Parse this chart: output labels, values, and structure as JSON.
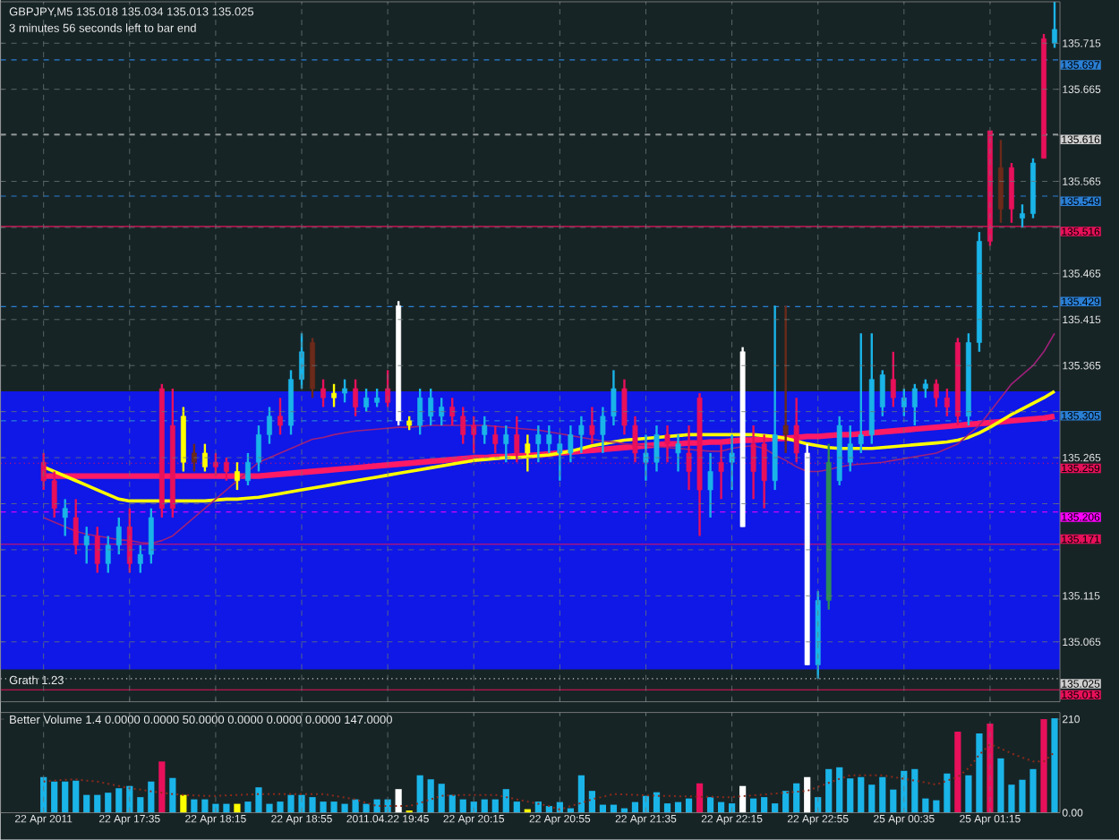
{
  "chart_data": [
    {
      "type": "candlestick",
      "title": "GBPJPY,M5  135.018 135.034 135.013 135.025",
      "subtitle": "3 minutes 56 seconds left to bar end",
      "annotations": [
        "Grath 1.23"
      ],
      "categories": [
        null,
        null,
        null,
        null,
        null,
        null,
        null,
        null,
        null,
        null,
        null,
        null,
        null,
        null,
        null,
        null,
        null,
        null,
        null,
        null,
        null,
        null,
        null,
        null,
        null,
        null,
        null,
        null,
        null,
        null,
        null,
        null,
        null,
        null,
        null,
        null,
        null,
        null,
        null,
        null,
        null,
        null,
        null,
        null,
        null,
        null,
        null,
        null,
        null,
        null,
        null,
        null,
        null,
        null,
        null,
        null,
        null,
        null,
        null,
        null,
        null,
        null,
        null,
        null,
        null,
        null,
        null,
        null,
        null,
        null,
        null,
        null,
        null,
        null,
        null,
        null,
        null,
        null,
        null,
        null,
        null,
        null,
        null,
        null,
        null,
        null,
        null,
        null,
        null,
        null,
        null,
        null,
        null,
        null,
        null
      ],
      "ohlc": [
        [
          135.26,
          135.27,
          135.23,
          135.24
        ],
        [
          135.24,
          135.25,
          135.2,
          135.21
        ],
        [
          135.2,
          135.22,
          135.18,
          135.21
        ],
        [
          135.2,
          135.22,
          135.16,
          135.17
        ],
        [
          135.17,
          135.19,
          135.15,
          135.18
        ],
        [
          135.18,
          135.19,
          135.14,
          135.15
        ],
        [
          135.15,
          135.18,
          135.14,
          135.17
        ],
        [
          135.17,
          135.2,
          135.16,
          135.19
        ],
        [
          135.19,
          135.21,
          135.14,
          135.15
        ],
        [
          135.15,
          135.17,
          135.14,
          135.16
        ],
        [
          135.16,
          135.21,
          135.15,
          135.2
        ],
        [
          135.34,
          135.345,
          135.2,
          135.21
        ],
        [
          135.3,
          135.34,
          135.2,
          135.21
        ],
        [
          135.31,
          135.32,
          135.25,
          135.26
        ],
        [
          135.26,
          135.28,
          135.25,
          135.27
        ],
        [
          135.27,
          135.28,
          135.25,
          135.255
        ],
        [
          135.26,
          135.27,
          135.245,
          135.255
        ],
        [
          135.26,
          135.265,
          135.24,
          135.25
        ],
        [
          135.25,
          135.26,
          135.23,
          135.24
        ],
        [
          135.24,
          135.27,
          135.235,
          135.26
        ],
        [
          135.26,
          135.3,
          135.25,
          135.29
        ],
        [
          135.29,
          135.32,
          135.28,
          135.31
        ],
        [
          135.31,
          135.33,
          135.29,
          135.3
        ],
        [
          135.3,
          135.36,
          135.29,
          135.35
        ],
        [
          135.35,
          135.4,
          135.34,
          135.38
        ],
        [
          135.39,
          135.395,
          135.33,
          135.34
        ],
        [
          135.34,
          135.35,
          135.32,
          135.33
        ],
        [
          135.33,
          135.345,
          135.32,
          135.335
        ],
        [
          135.335,
          135.35,
          135.325,
          135.34
        ],
        [
          135.34,
          135.35,
          135.31,
          135.32
        ],
        [
          135.32,
          135.34,
          135.315,
          135.33
        ],
        [
          135.325,
          135.34,
          135.32,
          135.33
        ],
        [
          135.34,
          135.36,
          135.32,
          135.325
        ],
        [
          135.43,
          135.435,
          135.3,
          135.305
        ],
        [
          135.305,
          135.31,
          135.295,
          135.3
        ],
        [
          135.3,
          135.34,
          135.29,
          135.33
        ],
        [
          135.31,
          135.34,
          135.3,
          135.33
        ],
        [
          135.31,
          135.33,
          135.3,
          135.32
        ],
        [
          135.32,
          135.33,
          135.3,
          135.31
        ],
        [
          135.31,
          135.32,
          135.28,
          135.29
        ],
        [
          135.3,
          135.31,
          135.27,
          135.29
        ],
        [
          135.29,
          135.31,
          135.28,
          135.3
        ],
        [
          135.29,
          135.3,
          135.27,
          135.28
        ],
        [
          135.28,
          135.3,
          135.26,
          135.29
        ],
        [
          135.29,
          135.31,
          135.26,
          135.27
        ],
        [
          135.27,
          135.29,
          135.25,
          135.28
        ],
        [
          135.28,
          135.3,
          135.26,
          135.29
        ],
        [
          135.28,
          135.3,
          135.27,
          135.29
        ],
        [
          135.27,
          135.29,
          135.24,
          135.28
        ],
        [
          135.27,
          135.3,
          135.26,
          135.29
        ],
        [
          135.29,
          135.31,
          135.27,
          135.3
        ],
        [
          135.3,
          135.32,
          135.28,
          135.29
        ],
        [
          135.29,
          135.32,
          135.27,
          135.31
        ],
        [
          135.31,
          135.36,
          135.3,
          135.34
        ],
        [
          135.34,
          135.35,
          135.29,
          135.3
        ],
        [
          135.3,
          135.31,
          135.26,
          135.27
        ],
        [
          135.26,
          135.29,
          135.24,
          135.27
        ],
        [
          135.26,
          135.3,
          135.25,
          135.29
        ],
        [
          135.29,
          135.3,
          135.26,
          135.28
        ],
        [
          135.27,
          135.29,
          135.25,
          135.28
        ],
        [
          135.27,
          135.3,
          135.23,
          135.25
        ],
        [
          135.33,
          135.335,
          135.18,
          135.23
        ],
        [
          135.23,
          135.27,
          135.2,
          135.25
        ],
        [
          135.26,
          135.28,
          135.22,
          135.25
        ],
        [
          135.26,
          135.29,
          135.23,
          135.27
        ],
        [
          135.38,
          135.385,
          135.19,
          135.19
        ],
        [
          135.28,
          135.3,
          135.22,
          135.25
        ],
        [
          135.28,
          135.29,
          135.21,
          135.24
        ],
        [
          135.24,
          135.43,
          135.23,
          135.29
        ],
        [
          135.29,
          135.43,
          135.27,
          135.3
        ],
        [
          135.3,
          135.33,
          135.26,
          135.27
        ],
        [
          135.27,
          135.28,
          135.04,
          135.04
        ],
        [
          135.04,
          135.12,
          135.025,
          135.11
        ],
        [
          135.11,
          135.28,
          135.1,
          135.26
        ],
        [
          135.24,
          135.31,
          135.235,
          135.3
        ],
        [
          135.26,
          135.3,
          135.25,
          135.28
        ],
        [
          135.28,
          135.4,
          135.27,
          135.29
        ],
        [
          135.29,
          135.4,
          135.28,
          135.35
        ],
        [
          135.32,
          135.36,
          135.31,
          135.355
        ],
        [
          135.35,
          135.38,
          135.32,
          135.33
        ],
        [
          135.32,
          135.34,
          135.31,
          135.33
        ],
        [
          135.32,
          135.345,
          135.3,
          135.34
        ],
        [
          135.34,
          135.35,
          135.33,
          135.345
        ],
        [
          135.345,
          135.35,
          135.32,
          135.33
        ],
        [
          135.33,
          135.34,
          135.31,
          135.32
        ],
        [
          135.39,
          135.395,
          135.3,
          135.31
        ],
        [
          135.31,
          135.4,
          135.3,
          135.39
        ],
        [
          135.39,
          135.51,
          135.38,
          135.5
        ],
        [
          135.62,
          135.62,
          135.495,
          135.5
        ],
        [
          135.535,
          135.61,
          135.52,
          135.58
        ],
        [
          135.58,
          135.585,
          135.52,
          135.535
        ],
        [
          135.525,
          135.54,
          135.515,
          135.53
        ],
        [
          135.53,
          135.59,
          135.525,
          135.585
        ],
        [
          135.72,
          135.725,
          135.59,
          135.59
        ],
        [
          135.715,
          135.76,
          135.71,
          135.73
        ]
      ],
      "colors": [
        "#e8105a",
        "#e8105a",
        "#1ab4e8",
        "#e8105a",
        "#1ab4e8",
        "#e8105a",
        "#1ab4e8",
        "#1ab4e8",
        "#e8105a",
        "#1ab4e8",
        "#1ab4e8",
        "#e8105a",
        "#e8105a",
        "#ffff00",
        "#6b2a1a",
        "#ffff00",
        "#e8105a",
        "#e8105a",
        "#ffff00",
        "#1ab4e8",
        "#1ab4e8",
        "#1ab4e8",
        "#e8105a",
        "#1ab4e8",
        "#1ab4e8",
        "#6b2a1a",
        "#e8105a",
        "#ffff00",
        "#1ab4e8",
        "#e8105a",
        "#1ab4e8",
        "#1ab4e8",
        "#e8105a",
        "#ffffff",
        "#ffff00",
        "#1ab4e8",
        "#1ab4e8",
        "#1ab4e8",
        "#e8105a",
        "#e8105a",
        "#e8105a",
        "#1ab4e8",
        "#e8105a",
        "#1ab4e8",
        "#e8105a",
        "#ffff00",
        "#1ab4e8",
        "#1ab4e8",
        "#1ab4e8",
        "#1ab4e8",
        "#1ab4e8",
        "#e8105a",
        "#1ab4e8",
        "#1ab4e8",
        "#e8105a",
        "#e8105a",
        "#1ab4e8",
        "#1ab4e8",
        "#e8105a",
        "#1ab4e8",
        "#e8105a",
        "#e8105a",
        "#1ab4e8",
        "#e8105a",
        "#1ab4e8",
        "#ffffff",
        "#e8105a",
        "#e8105a",
        "#1ab4e8",
        "#6b2a1a",
        "#e8105a",
        "#ffffff",
        "#1ab4e8",
        "#2e8b57",
        "#1ab4e8",
        "#1ab4e8",
        "#1ab4e8",
        "#1ab4e8",
        "#1ab4e8",
        "#e8105a",
        "#1ab4e8",
        "#1ab4e8",
        "#1ab4e8",
        "#e8105a",
        "#e8105a",
        "#e8105a",
        "#1ab4e8",
        "#1ab4e8",
        "#e8105a",
        "#6b2a1a",
        "#e8105a",
        "#1ab4e8",
        "#1ab4e8",
        "#e8105a",
        "#1ab4e8"
      ],
      "series": [
        {
          "type": "line",
          "color": "#ff1a66",
          "values": [
            135.245,
            135.245,
            135.245,
            135.245,
            135.245,
            135.245,
            135.245,
            135.245,
            135.245,
            135.245,
            135.245,
            135.245,
            135.245,
            135.245,
            135.245,
            135.245,
            135.245,
            135.245,
            135.245,
            135.245,
            135.245,
            135.246,
            135.247,
            135.248,
            135.249,
            135.25,
            135.251,
            135.252,
            135.253,
            135.254,
            135.255,
            135.256,
            135.257,
            135.258,
            135.259,
            135.26,
            135.261,
            135.262,
            135.263,
            135.264,
            135.265,
            135.265,
            135.266,
            135.266,
            135.267,
            135.267,
            135.268,
            135.269,
            135.27,
            135.271,
            135.272,
            135.273,
            135.274,
            135.275,
            135.276,
            135.277,
            135.278,
            135.279,
            135.28,
            135.28,
            135.281,
            135.281,
            135.282,
            135.282,
            135.283,
            135.284,
            135.284,
            135.285,
            135.286,
            135.286,
            135.287,
            135.288,
            135.288,
            135.289,
            135.29,
            135.29,
            135.291,
            135.292,
            135.293,
            135.294,
            135.295,
            135.296,
            135.297,
            135.298,
            135.299,
            135.3,
            135.301,
            135.302,
            135.303,
            135.304,
            135.305,
            135.306,
            135.307,
            135.308,
            135.31
          ]
        },
        {
          "type": "line",
          "color": "#ffff00",
          "values": [
            135.255,
            135.25,
            135.245,
            135.24,
            135.235,
            135.23,
            135.225,
            135.22,
            135.218,
            135.218,
            135.218,
            135.218,
            135.218,
            135.218,
            135.218,
            135.218,
            135.219,
            135.22,
            135.22,
            135.221,
            135.222,
            135.224,
            135.226,
            135.228,
            135.23,
            135.232,
            135.234,
            135.236,
            135.238,
            135.24,
            135.242,
            135.244,
            135.246,
            135.248,
            135.25,
            135.252,
            135.254,
            135.256,
            135.258,
            135.26,
            135.262,
            135.263,
            135.264,
            135.265,
            135.265,
            135.266,
            135.267,
            135.268,
            135.27,
            135.272,
            135.275,
            135.278,
            135.28,
            135.282,
            135.284,
            135.285,
            135.286,
            135.287,
            135.288,
            135.289,
            135.29,
            135.29,
            135.29,
            135.29,
            135.29,
            135.29,
            135.29,
            135.289,
            135.288,
            135.286,
            135.283,
            135.28,
            135.278,
            135.276,
            135.275,
            135.275,
            135.275,
            135.275,
            135.276,
            135.277,
            135.278,
            135.279,
            135.28,
            135.281,
            135.282,
            135.284,
            135.287,
            135.292,
            135.298,
            135.305,
            135.312,
            135.318,
            135.324,
            135.33,
            135.337
          ]
        },
        {
          "type": "line",
          "color": "#a0207a",
          "values": [
            135.2,
            135.195,
            135.19,
            135.185,
            135.182,
            135.18,
            135.178,
            135.176,
            135.175,
            135.173,
            135.172,
            135.175,
            135.18,
            135.19,
            135.2,
            135.21,
            135.22,
            135.23,
            135.24,
            135.25,
            135.26,
            135.265,
            135.27,
            135.275,
            135.28,
            135.285,
            135.287,
            135.29,
            135.292,
            135.294,
            135.295,
            135.296,
            135.297,
            135.298,
            135.298,
            135.299,
            135.3,
            135.3,
            135.3,
            135.3,
            135.3,
            135.3,
            135.299,
            135.298,
            135.297,
            135.296,
            135.295,
            135.293,
            135.291,
            135.289,
            135.287,
            135.285,
            135.283,
            135.282,
            135.28,
            135.279,
            135.278,
            135.277,
            135.276,
            135.275,
            135.274,
            135.273,
            135.272,
            135.272,
            135.275,
            135.277,
            135.278,
            135.275,
            135.268,
            135.262,
            135.255,
            135.25,
            135.25,
            135.252,
            135.255,
            135.257,
            135.258,
            135.259,
            135.26,
            135.262,
            135.264,
            135.266,
            135.268,
            135.27,
            135.275,
            135.28,
            135.29,
            135.3,
            135.315,
            135.33,
            135.345,
            135.355,
            135.365,
            135.38,
            135.4
          ]
        }
      ],
      "ylim": [
        135.0,
        135.76
      ],
      "yticks": [
        135.065,
        135.115,
        {
          "value": 135.165,
          "label": null
        },
        {
          "value": 135.215,
          "label": null
        },
        135.265,
        {
          "value": 135.315,
          "label": null
        },
        135.365,
        135.415,
        135.465,
        {
          "value": 135.515,
          "label": null
        },
        135.565,
        {
          "value": 135.615,
          "label": null
        },
        135.665,
        135.715
      ],
      "grid": true,
      "tick_labels": "y",
      "bands": [
        {
          "axis": "y",
          "from": 135.035,
          "to": 135.337,
          "color": "#0f18e6"
        }
      ],
      "ref_lines": [
        {
          "axis": "y",
          "value": 135.697,
          "label": "135.697",
          "color": "#2a7fd4",
          "line_style": "dashed"
        },
        {
          "axis": "y",
          "value": 135.616,
          "label": "135.616",
          "color": "#d0d0d0",
          "line_style": "dashed"
        },
        {
          "axis": "y",
          "value": 135.549,
          "label": "135.549",
          "color": "#2a7fd4",
          "line_style": "dashed"
        },
        {
          "axis": "y",
          "value": 135.516,
          "label": "135.516",
          "color": "#e8105a",
          "line_style": "solid"
        },
        {
          "axis": "y",
          "value": 135.429,
          "label": "135.429",
          "color": "#2a7fd4",
          "line_style": "dashed"
        },
        {
          "axis": "y",
          "value": 135.305,
          "label": "135.305",
          "color": "#2a7fd4",
          "line_style": "dashed"
        },
        {
          "axis": "y",
          "value": 135.259,
          "label": "135.259",
          "color": "#e8105a",
          "line_style": "dotted"
        },
        {
          "axis": "y",
          "value": 135.206,
          "label": "135.206",
          "color": "#ff00ff",
          "line_style": "dashed"
        },
        {
          "axis": "y",
          "value": 135.171,
          "label": "135.171",
          "color": "#e8105a",
          "line_style": "solid"
        },
        {
          "axis": "y",
          "value": 135.025,
          "label": "135.025",
          "color": "#d0d0d0",
          "line_style": "dotted"
        },
        {
          "axis": "y",
          "value": 135.013,
          "label": "135.013",
          "color": "#e8105a",
          "line_style": "solid"
        }
      ]
    },
    {
      "type": "bar",
      "title": "Better Volume 1.4 0.0000 0.0000 50.0000 0.0000 0.0000 0.0000 147.0000",
      "categories": [
        "22 Apr 2011",
        null,
        null,
        null,
        null,
        null,
        null,
        null,
        "22 Apr 17:35",
        null,
        null,
        null,
        null,
        null,
        null,
        null,
        "22 Apr 18:15",
        null,
        null,
        null,
        null,
        null,
        null,
        null,
        "22 Apr 18:55",
        null,
        null,
        null,
        null,
        null,
        null,
        null,
        "2011.04.22 19:45",
        null,
        null,
        null,
        null,
        null,
        null,
        null,
        "22 Apr 20:15",
        null,
        null,
        null,
        null,
        null,
        null,
        null,
        "22 Apr 20:55",
        null,
        null,
        null,
        null,
        null,
        null,
        null,
        "22 Apr 21:35",
        null,
        null,
        null,
        null,
        null,
        null,
        null,
        "22 Apr 22:15",
        null,
        null,
        null,
        null,
        null,
        null,
        null,
        "22 Apr 22:55",
        null,
        null,
        null,
        null,
        null,
        null,
        null,
        "25 Apr 00:35",
        null,
        null,
        null,
        null,
        null,
        null,
        null,
        "25 Apr 01:15",
        null,
        null,
        null,
        null,
        null,
        null
      ],
      "series": [
        {
          "type": "bar",
          "values": [
            80,
            70,
            70,
            72,
            40,
            40,
            45,
            55,
            60,
            35,
            70,
            115,
            78,
            40,
            30,
            30,
            20,
            20,
            20,
            25,
            57,
            20,
            25,
            40,
            40,
            35,
            25,
            25,
            20,
            30,
            20,
            30,
            30,
            53,
            5,
            84,
            75,
            65,
            40,
            30,
            25,
            30,
            30,
            53,
            25,
            8,
            25,
            15,
            24,
            10,
            84,
            49,
            18,
            18,
            10,
            24,
            38,
            46,
            21,
            24,
            32,
            66,
            35,
            24,
            21,
            60,
            32,
            35,
            21,
            49,
            66,
            80,
            35,
            98,
            102,
            77,
            80,
            63,
            80,
            52,
            94,
            98,
            32,
            28,
            88,
            182,
            84,
            178,
            200,
            122,
            63,
            74,
            98,
            210,
            212
          ],
          "colors": [
            "#1ab4e8",
            "#1ab4e8",
            "#1ab4e8",
            "#1ab4e8",
            "#1ab4e8",
            "#1ab4e8",
            "#1ab4e8",
            "#1ab4e8",
            "#1ab4e8",
            "#1ab4e8",
            "#1ab4e8",
            "#e8105a",
            "#1ab4e8",
            "#ffff00",
            "#1ab4e8",
            "#1ab4e8",
            "#1ab4e8",
            "#1ab4e8",
            "#ffff00",
            "#1ab4e8",
            "#1ab4e8",
            "#1ab4e8",
            "#1ab4e8",
            "#1ab4e8",
            "#1ab4e8",
            "#1ab4e8",
            "#1ab4e8",
            "#1ab4e8",
            "#1ab4e8",
            "#1ab4e8",
            "#1ab4e8",
            "#1ab4e8",
            "#1ab4e8",
            "#ffffff",
            "#ffff00",
            "#1ab4e8",
            "#1ab4e8",
            "#1ab4e8",
            "#1ab4e8",
            "#1ab4e8",
            "#1ab4e8",
            "#1ab4e8",
            "#1ab4e8",
            "#1ab4e8",
            "#1ab4e8",
            "#ffff00",
            "#1ab4e8",
            "#1ab4e8",
            "#1ab4e8",
            "#1ab4e8",
            "#1ab4e8",
            "#1ab4e8",
            "#1ab4e8",
            "#1ab4e8",
            "#1ab4e8",
            "#1ab4e8",
            "#1ab4e8",
            "#1ab4e8",
            "#1ab4e8",
            "#1ab4e8",
            "#1ab4e8",
            "#e8105a",
            "#1ab4e8",
            "#1ab4e8",
            "#1ab4e8",
            "#ffffff",
            "#1ab4e8",
            "#1ab4e8",
            "#1ab4e8",
            "#1ab4e8",
            "#1ab4e8",
            "#ffffff",
            "#1ab4e8",
            "#1ab4e8",
            "#1ab4e8",
            "#1ab4e8",
            "#1ab4e8",
            "#1ab4e8",
            "#1ab4e8",
            "#1ab4e8",
            "#1ab4e8",
            "#1ab4e8",
            "#1ab4e8",
            "#1ab4e8",
            "#1ab4e8",
            "#e8105a",
            "#1ab4e8",
            "#1ab4e8",
            "#e8105a",
            "#1ab4e8",
            "#1ab4e8",
            "#1ab4e8",
            "#1ab4e8",
            "#e8105a",
            "#1ab4e8"
          ]
        },
        {
          "type": "line",
          "color": "#8b2a1a",
          "line_style": "dotted",
          "values": [
            70,
            72,
            74,
            75,
            72,
            70,
            65,
            60,
            55,
            52,
            48,
            45,
            42,
            40,
            39,
            38,
            38,
            39,
            40,
            41,
            42,
            42,
            42,
            42,
            42,
            42,
            42,
            38,
            34,
            30,
            22,
            15,
            15,
            15,
            15,
            22,
            30,
            38,
            39,
            40,
            40,
            40,
            40,
            35,
            30,
            25,
            20,
            15,
            7,
            15,
            22,
            30,
            36,
            42,
            41,
            40,
            39,
            38,
            38,
            37,
            37,
            36,
            36,
            35,
            35,
            37,
            39,
            41,
            43,
            45,
            47,
            49,
            58,
            67,
            76,
            84,
            84,
            84,
            84,
            80,
            76,
            72,
            68,
            63,
            72,
            80,
            100,
            130,
            154,
            144,
            133,
            124,
            115,
            115,
            136
          ]
        }
      ],
      "ylim": [
        0,
        225
      ],
      "yticks": [
        {
          "value": 0,
          "label": "0.00"
        },
        210
      ],
      "grid": "x"
    }
  ]
}
